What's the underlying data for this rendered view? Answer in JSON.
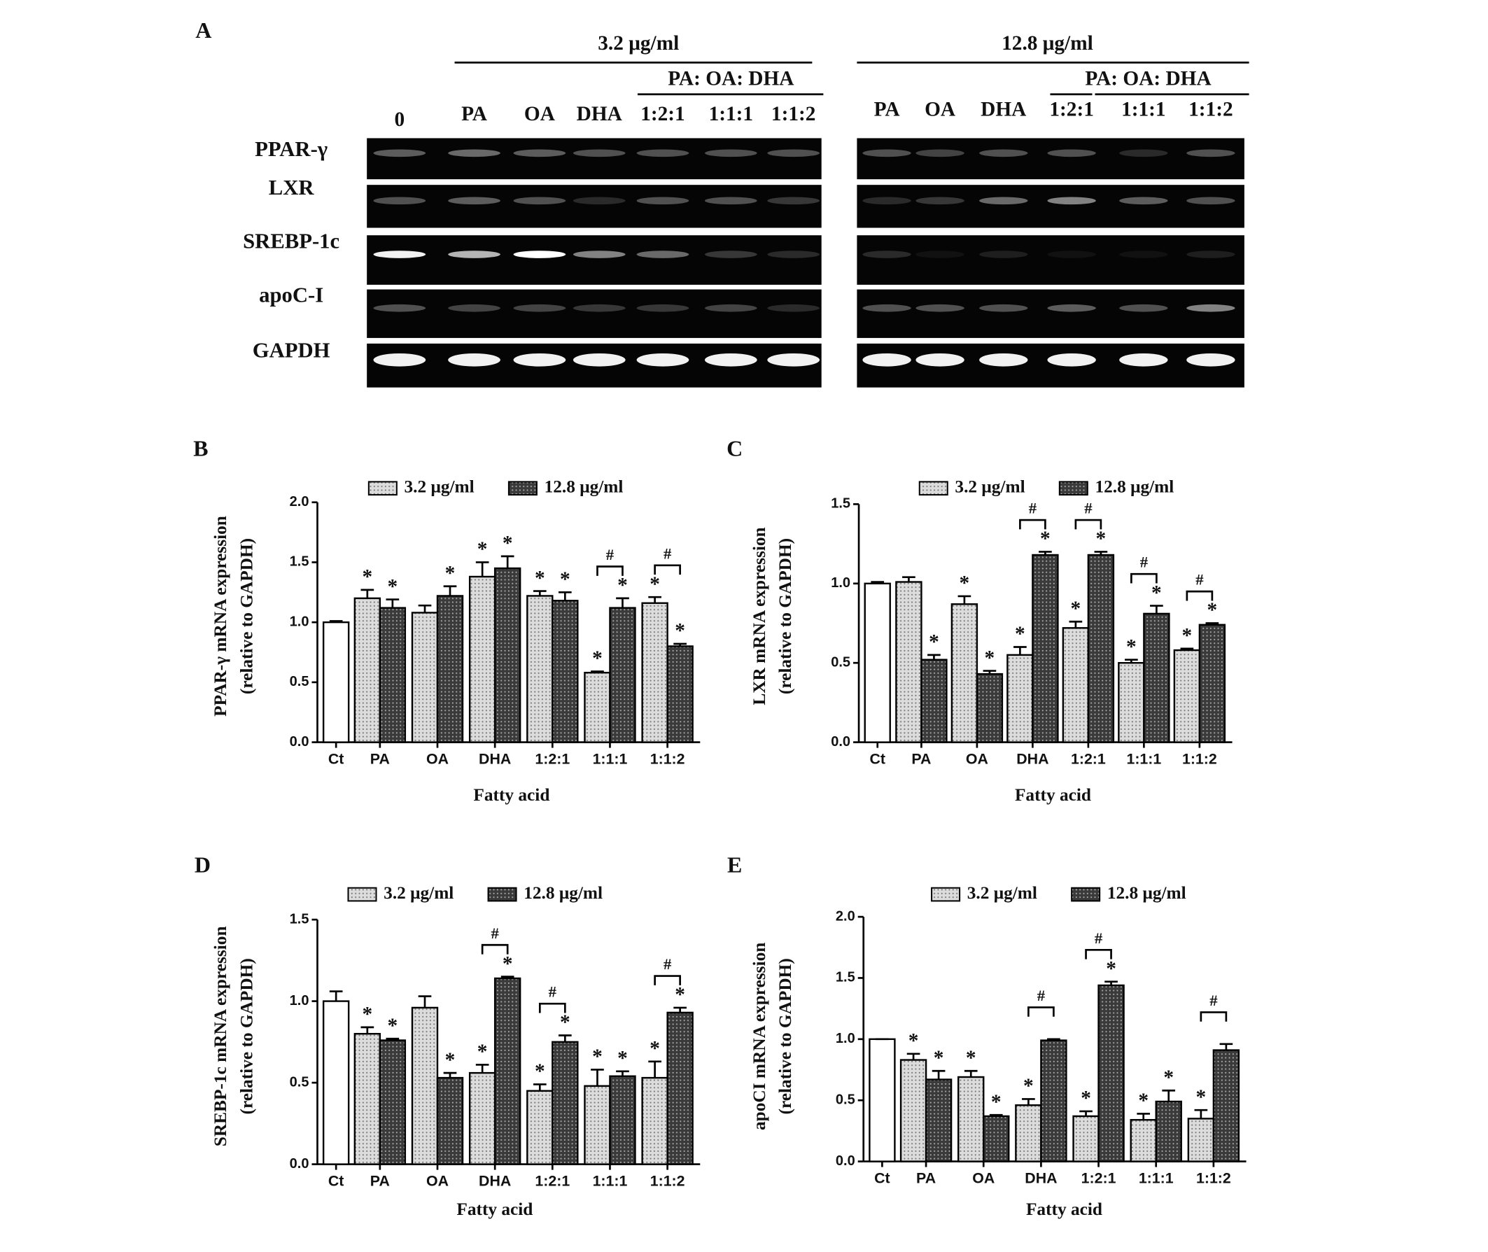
{
  "panel_a": {
    "label": "A",
    "conc_left": "3.2 μg/ml",
    "conc_right": "12.8 μg/ml",
    "ratio_header": "PA: OA: DHA",
    "lanes_left": [
      "0",
      "PA",
      "OA",
      "DHA",
      "1:2:1",
      "1:1:1",
      "1:1:2"
    ],
    "lanes_right": [
      "PA",
      "OA",
      "DHA",
      "1:2:1",
      "1:1:1",
      "1:1:2"
    ],
    "genes": [
      "PPAR-γ",
      "LXR",
      "SREBP-1c",
      "apoC-I",
      "GAPDH"
    ]
  },
  "chart_data": [
    {
      "type": "bar",
      "panel": "B",
      "ylabel": [
        "PPAR-γ mRNA expression",
        "(relative to GAPDH)"
      ],
      "xlabel": "Fatty acid",
      "star": "*",
      "hash_label": "#",
      "control_color": "#ffffff",
      "categories": [
        "Ct",
        "PA",
        "OA",
        "DHA",
        "1:2:1",
        "1:1:1",
        "1:1:2"
      ],
      "series": [
        {
          "name": "3.2 μg/ml",
          "color": "#dcdcdc",
          "values": [
            1.0,
            1.2,
            1.08,
            1.38,
            1.22,
            0.58,
            1.16
          ],
          "errors": [
            0.01,
            0.07,
            0.06,
            0.12,
            0.04,
            0.01,
            0.05
          ],
          "significant": [
            false,
            true,
            false,
            true,
            true,
            true,
            true
          ]
        },
        {
          "name": "12.8 μg/ml",
          "color": "#3a3a3a",
          "values": [
            null,
            1.12,
            1.22,
            1.45,
            1.18,
            1.12,
            0.8
          ],
          "errors": [
            null,
            0.07,
            0.08,
            0.1,
            0.07,
            0.08,
            0.02
          ],
          "significant": [
            false,
            true,
            true,
            true,
            true,
            true,
            true
          ]
        }
      ],
      "hash": [
        false,
        false,
        false,
        false,
        false,
        true,
        true
      ],
      "ylim": [
        0,
        2
      ],
      "yticks": [
        {
          "value": 0,
          "label": "0.0"
        },
        0.5,
        {
          "value": 1,
          "label": "1.0"
        },
        1.5,
        {
          "value": 2,
          "label": "2.0"
        }
      ]
    },
    {
      "type": "bar",
      "panel": "C",
      "ylabel": [
        "LXR mRNA expression",
        "(relative to GAPDH)"
      ],
      "xlabel": "Fatty acid",
      "star": "*",
      "hash_label": "#",
      "control_color": "#ffffff",
      "categories": [
        "Ct",
        "PA",
        "OA",
        "DHA",
        "1:2:1",
        "1:1:1",
        "1:1:2"
      ],
      "series": [
        {
          "name": "3.2 μg/ml",
          "color": "#dcdcdc",
          "values": [
            1.0,
            1.01,
            0.87,
            0.55,
            0.72,
            0.5,
            0.58
          ],
          "errors": [
            0.01,
            0.03,
            0.05,
            0.05,
            0.04,
            0.02,
            0.01
          ],
          "significant": [
            false,
            false,
            true,
            true,
            true,
            true,
            true
          ]
        },
        {
          "name": "12.8 μg/ml",
          "color": "#3a3a3a",
          "values": [
            null,
            0.52,
            0.43,
            1.18,
            1.18,
            0.81,
            0.74
          ],
          "errors": [
            null,
            0.03,
            0.02,
            0.02,
            0.02,
            0.05,
            0.01
          ],
          "significant": [
            false,
            true,
            true,
            true,
            true,
            true,
            true
          ]
        }
      ],
      "hash": [
        false,
        false,
        false,
        true,
        true,
        true,
        true
      ],
      "ylim": [
        0,
        1.5
      ],
      "yticks": [
        {
          "value": 0,
          "label": "0.0"
        },
        0.5,
        {
          "value": 1,
          "label": "1.0"
        },
        1.5
      ]
    },
    {
      "type": "bar",
      "panel": "D",
      "ylabel": [
        "SREBP-1c mRNA expression",
        "(relative to GAPDH)"
      ],
      "xlabel": "Fatty acid",
      "star": "*",
      "hash_label": "#",
      "control_color": "#ffffff",
      "categories": [
        "Ct",
        "PA",
        "OA",
        "DHA",
        "1:2:1",
        "1:1:1",
        "1:1:2"
      ],
      "series": [
        {
          "name": "3.2 μg/ml",
          "color": "#dcdcdc",
          "values": [
            1.0,
            0.8,
            0.96,
            0.56,
            0.45,
            0.48,
            0.53
          ],
          "errors": [
            0.06,
            0.04,
            0.07,
            0.05,
            0.04,
            0.1,
            0.1
          ],
          "significant": [
            false,
            true,
            false,
            true,
            true,
            true,
            true
          ]
        },
        {
          "name": "12.8 μg/ml",
          "color": "#3a3a3a",
          "values": [
            null,
            0.76,
            0.53,
            1.14,
            0.75,
            0.54,
            0.93
          ],
          "errors": [
            null,
            0.01,
            0.03,
            0.01,
            0.04,
            0.03,
            0.03
          ],
          "significant": [
            false,
            true,
            true,
            true,
            true,
            true,
            true
          ]
        }
      ],
      "hash": [
        false,
        false,
        false,
        true,
        true,
        false,
        true
      ],
      "ylim": [
        0,
        1.5
      ],
      "yticks": [
        {
          "value": 0,
          "label": "0.0"
        },
        0.5,
        {
          "value": 1,
          "label": "1.0"
        },
        1.5
      ]
    },
    {
      "type": "bar",
      "panel": "E",
      "ylabel": [
        "apoCI mRNA expression",
        "(relative to GAPDH)"
      ],
      "xlabel": "Fatty acid",
      "star": "*",
      "hash_label": "#",
      "control_color": "#ffffff",
      "categories": [
        "Ct",
        "PA",
        "OA",
        "DHA",
        "1:2:1",
        "1:1:1",
        "1:1:2"
      ],
      "series": [
        {
          "name": "3.2 μg/ml",
          "color": "#dcdcdc",
          "values": [
            1.0,
            0.83,
            0.69,
            0.46,
            0.37,
            0.34,
            0.35
          ],
          "errors": [
            0.0,
            0.05,
            0.05,
            0.05,
            0.04,
            0.05,
            0.07
          ],
          "significant": [
            false,
            true,
            true,
            true,
            true,
            true,
            true
          ]
        },
        {
          "name": "12.8 μg/ml",
          "color": "#3a3a3a",
          "values": [
            null,
            0.67,
            0.37,
            0.99,
            1.44,
            0.49,
            0.91
          ],
          "errors": [
            null,
            0.07,
            0.01,
            0.01,
            0.03,
            0.09,
            0.05
          ],
          "significant": [
            false,
            true,
            true,
            false,
            true,
            true,
            false
          ]
        }
      ],
      "hash": [
        false,
        false,
        false,
        true,
        true,
        false,
        true
      ],
      "ylim": [
        0,
        2
      ],
      "yticks": [
        {
          "value": 0,
          "label": "0.0"
        },
        0.5,
        {
          "value": 1,
          "label": "1.0"
        },
        1.5,
        {
          "value": 2,
          "label": "2.0"
        }
      ]
    }
  ]
}
